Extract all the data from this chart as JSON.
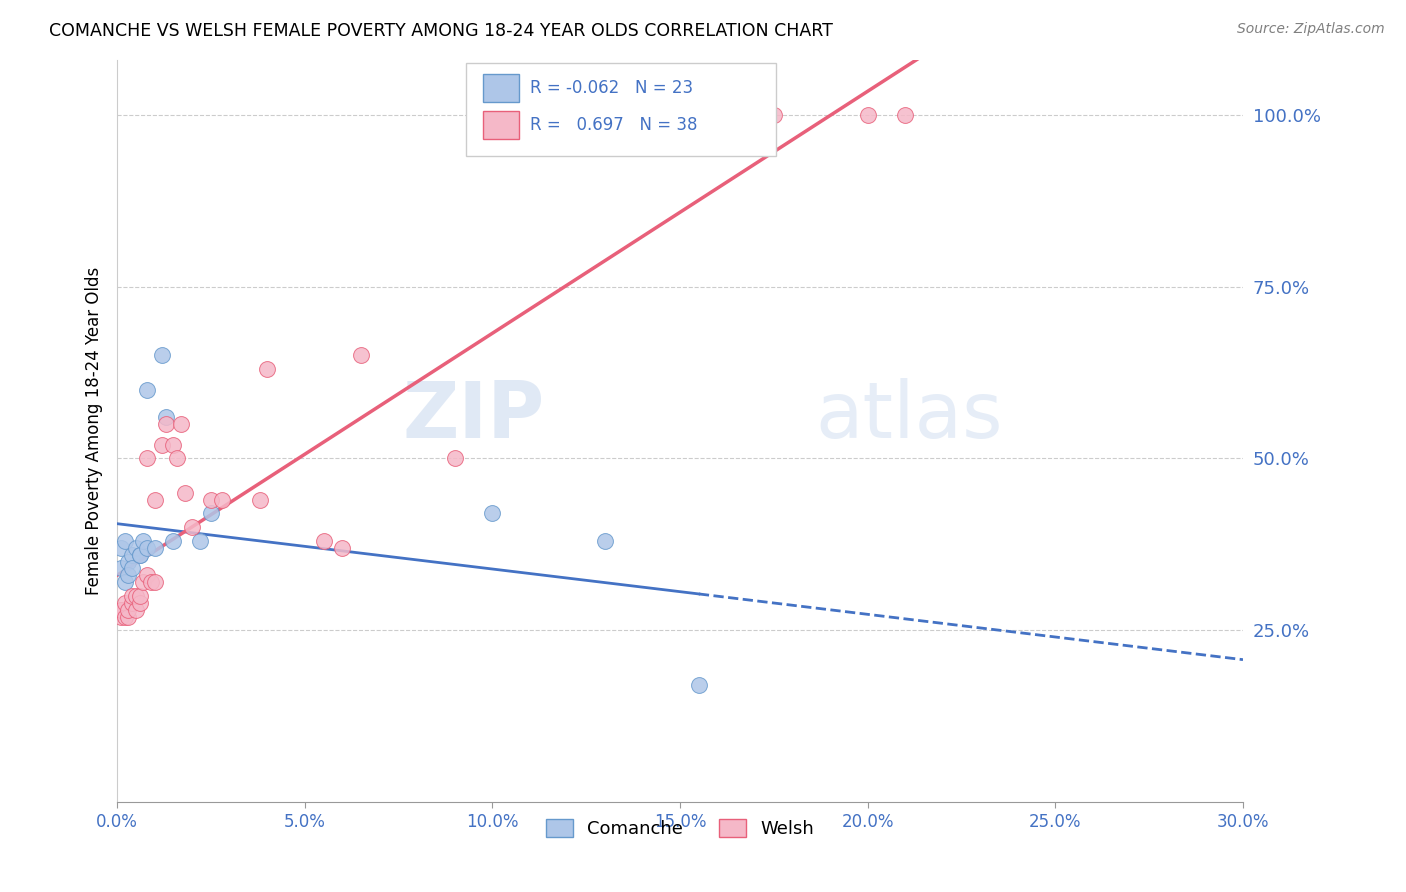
{
  "title": "COMANCHE VS WELSH FEMALE POVERTY AMONG 18-24 YEAR OLDS CORRELATION CHART",
  "source": "Source: ZipAtlas.com",
  "ylabel": "Female Poverty Among 18-24 Year Olds",
  "comanche_R": -0.062,
  "comanche_N": 23,
  "welsh_R": 0.697,
  "welsh_N": 38,
  "comanche_color": "#aec6e8",
  "welsh_color": "#f5b8c8",
  "comanche_edge_color": "#6699cc",
  "welsh_edge_color": "#e8607a",
  "comanche_line_color": "#4472c4",
  "welsh_line_color": "#e8607a",
  "watermark_zip": "ZIP",
  "watermark_atlas": "atlas",
  "xlim": [
    0,
    0.3
  ],
  "ylim": [
    0,
    1.08
  ],
  "comanche_x": [
    0.001,
    0.001,
    0.002,
    0.002,
    0.003,
    0.003,
    0.004,
    0.004,
    0.005,
    0.006,
    0.006,
    0.007,
    0.008,
    0.008,
    0.01,
    0.012,
    0.013,
    0.015,
    0.022,
    0.025,
    0.1,
    0.13,
    0.155
  ],
  "comanche_y": [
    0.34,
    0.37,
    0.32,
    0.38,
    0.35,
    0.33,
    0.36,
    0.34,
    0.37,
    0.36,
    0.36,
    0.38,
    0.37,
    0.6,
    0.37,
    0.65,
    0.56,
    0.38,
    0.38,
    0.42,
    0.42,
    0.38,
    0.17
  ],
  "welsh_x": [
    0.001,
    0.001,
    0.001,
    0.002,
    0.002,
    0.003,
    0.003,
    0.004,
    0.004,
    0.005,
    0.005,
    0.006,
    0.006,
    0.007,
    0.008,
    0.008,
    0.009,
    0.01,
    0.01,
    0.012,
    0.013,
    0.015,
    0.016,
    0.017,
    0.018,
    0.02,
    0.025,
    0.028,
    0.038,
    0.04,
    0.055,
    0.06,
    0.065,
    0.09,
    0.15,
    0.175,
    0.2,
    0.21
  ],
  "welsh_y": [
    0.27,
    0.28,
    0.28,
    0.27,
    0.29,
    0.27,
    0.28,
    0.29,
    0.3,
    0.28,
    0.3,
    0.29,
    0.3,
    0.32,
    0.33,
    0.5,
    0.32,
    0.32,
    0.44,
    0.52,
    0.55,
    0.52,
    0.5,
    0.55,
    0.45,
    0.4,
    0.44,
    0.44,
    0.44,
    0.63,
    0.38,
    0.37,
    0.65,
    0.5,
    1.0,
    1.0,
    1.0,
    1.0
  ],
  "xticks": [
    0.0,
    0.05,
    0.1,
    0.15,
    0.2,
    0.25,
    0.3
  ],
  "xtick_labels": [
    "0.0%",
    "5.0%",
    "10.0%",
    "15.0%",
    "20.0%",
    "25.0%",
    "30.0%"
  ],
  "yticks_right": [
    0.25,
    0.5,
    0.75,
    1.0
  ],
  "ytick_labels_right": [
    "25.0%",
    "50.0%",
    "75.0%",
    "100.0%"
  ]
}
